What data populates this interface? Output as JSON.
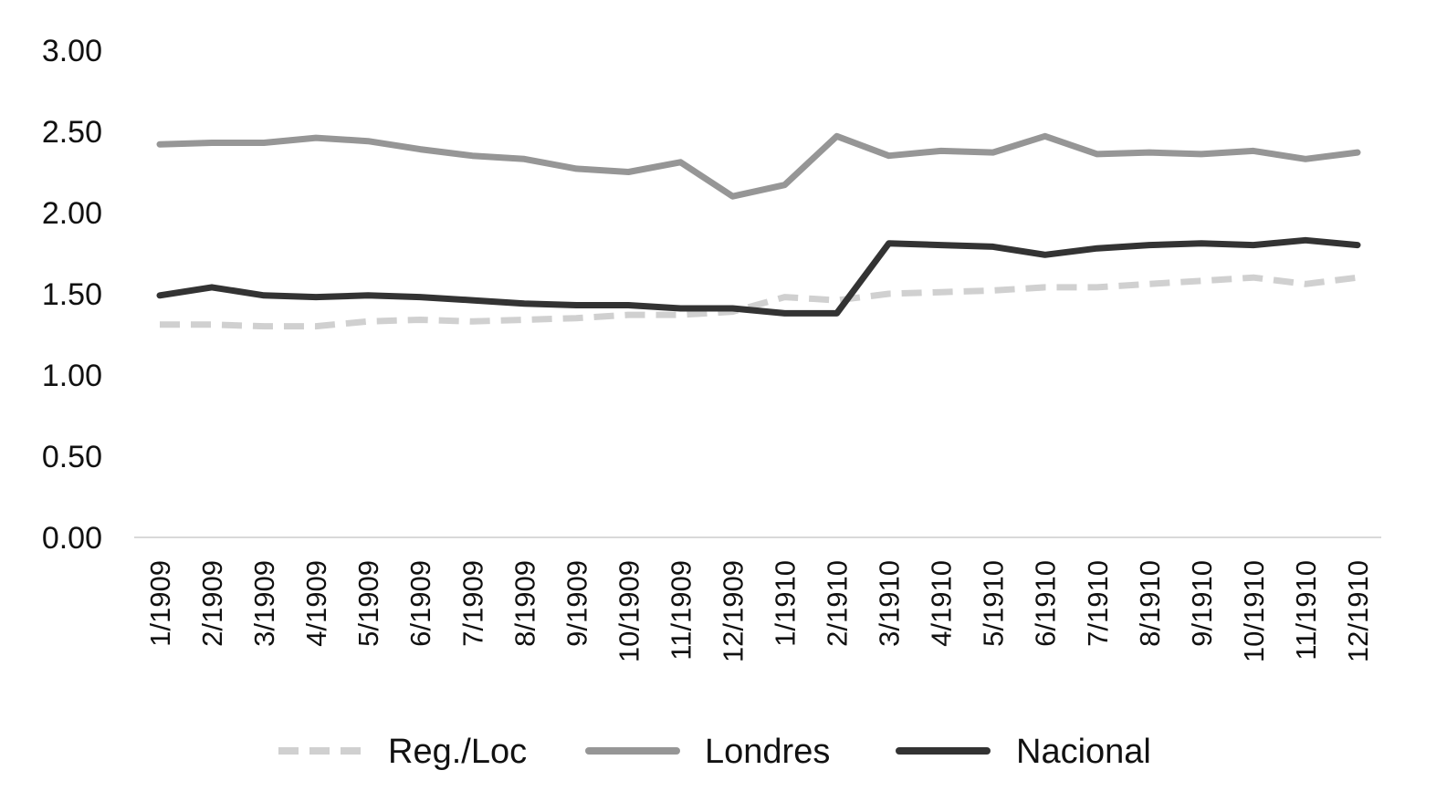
{
  "chart_data": {
    "type": "line",
    "title": "",
    "xlabel": "",
    "ylabel": "",
    "ylim": [
      0,
      3
    ],
    "yticks": [
      "0.00",
      "0.50",
      "1.00",
      "1.50",
      "2.00",
      "2.50",
      "3.00"
    ],
    "ytick_values": [
      0,
      0.5,
      1,
      1.5,
      2,
      2.5,
      3
    ],
    "grid": false,
    "legend_position": "bottom",
    "categories": [
      "1/1909",
      "2/1909",
      "3/1909",
      "4/1909",
      "5/1909",
      "6/1909",
      "7/1909",
      "8/1909",
      "9/1909",
      "10/1909",
      "11/1909",
      "12/1909",
      "1/1910",
      "2/1910",
      "3/1910",
      "4/1910",
      "5/1910",
      "6/1910",
      "7/1910",
      "8/1910",
      "9/1910",
      "10/1910",
      "11/1910",
      "12/1910"
    ],
    "series": [
      {
        "name": "Reg./Loc",
        "color": "#d0d0d0",
        "dash": true,
        "values": [
          1.31,
          1.31,
          1.3,
          1.3,
          1.33,
          1.34,
          1.33,
          1.34,
          1.35,
          1.37,
          1.37,
          1.39,
          1.48,
          1.46,
          1.5,
          1.51,
          1.52,
          1.54,
          1.54,
          1.56,
          1.58,
          1.6,
          1.56,
          1.6
        ]
      },
      {
        "name": "Londres",
        "color": "#969696",
        "dash": false,
        "values": [
          2.42,
          2.43,
          2.43,
          2.46,
          2.44,
          2.39,
          2.35,
          2.33,
          2.27,
          2.25,
          2.31,
          2.1,
          2.17,
          2.47,
          2.35,
          2.38,
          2.37,
          2.47,
          2.36,
          2.37,
          2.36,
          2.38,
          2.33,
          2.37
        ]
      },
      {
        "name": "Nacional",
        "color": "#333333",
        "dash": false,
        "values": [
          1.49,
          1.54,
          1.49,
          1.48,
          1.49,
          1.48,
          1.46,
          1.44,
          1.43,
          1.43,
          1.41,
          1.41,
          1.38,
          1.38,
          1.81,
          1.8,
          1.79,
          1.74,
          1.78,
          1.8,
          1.81,
          1.8,
          1.83,
          1.8
        ]
      }
    ]
  }
}
